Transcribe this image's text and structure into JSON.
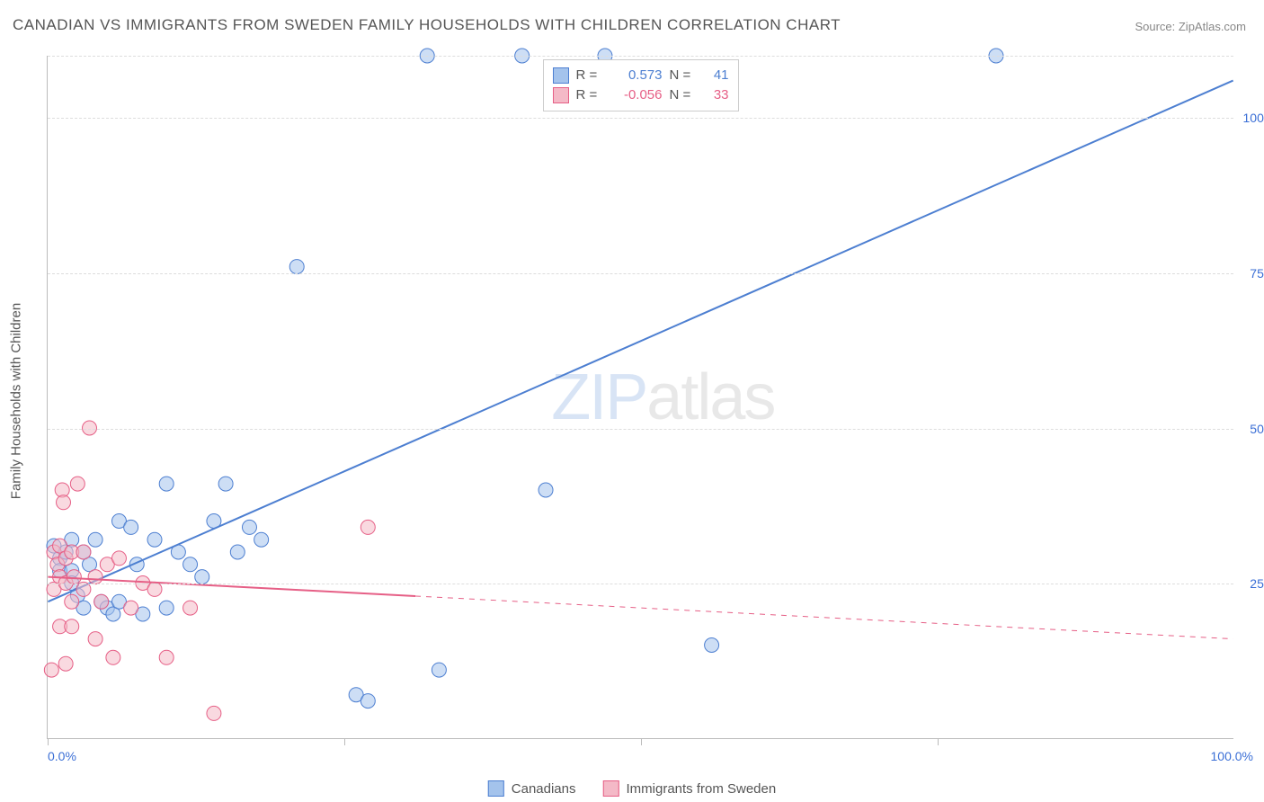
{
  "title": "CANADIAN VS IMMIGRANTS FROM SWEDEN FAMILY HOUSEHOLDS WITH CHILDREN CORRELATION CHART",
  "source_label": "Source: ",
  "source_site": "ZipAtlas.com",
  "ylabel": "Family Households with Children",
  "watermark_a": "ZIP",
  "watermark_b": "atlas",
  "chart": {
    "type": "scatter-correlation",
    "xlim": [
      0,
      100
    ],
    "ylim": [
      0,
      110
    ],
    "x_tick_positions": [
      0,
      25,
      50,
      75
    ],
    "y_grid": [
      25,
      50,
      75,
      100
    ],
    "y_grid_labels": [
      "25.0%",
      "50.0%",
      "75.0%",
      "100.0%"
    ],
    "x_left_label": "0.0%",
    "x_right_label": "100.0%",
    "background_color": "#ffffff",
    "grid_color": "#dddddd",
    "axis_color": "#bbbbbb",
    "label_color": "#3b6fd6",
    "marker_radius": 8,
    "marker_opacity": 0.55,
    "line_width": 2,
    "series": [
      {
        "name": "Canadians",
        "color_fill": "#a4c3ec",
        "color_stroke": "#4d7fd1",
        "r_value": "0.573",
        "n_value": "41",
        "points": [
          [
            0.5,
            31
          ],
          [
            1,
            29
          ],
          [
            1,
            27
          ],
          [
            1.5,
            30
          ],
          [
            2,
            32
          ],
          [
            2,
            27
          ],
          [
            2,
            25
          ],
          [
            2.5,
            23
          ],
          [
            3,
            30
          ],
          [
            3,
            21
          ],
          [
            3.5,
            28
          ],
          [
            4,
            32
          ],
          [
            4.5,
            22
          ],
          [
            5,
            21
          ],
          [
            5.5,
            20
          ],
          [
            6,
            35
          ],
          [
            6,
            22
          ],
          [
            7,
            34
          ],
          [
            7.5,
            28
          ],
          [
            8,
            20
          ],
          [
            9,
            32
          ],
          [
            10,
            21
          ],
          [
            10,
            41
          ],
          [
            11,
            30
          ],
          [
            12,
            28
          ],
          [
            13,
            26
          ],
          [
            14,
            35
          ],
          [
            15,
            41
          ],
          [
            16,
            30
          ],
          [
            17,
            34
          ],
          [
            18,
            32
          ],
          [
            21,
            76
          ],
          [
            26,
            7
          ],
          [
            27,
            6
          ],
          [
            32,
            110
          ],
          [
            33,
            11
          ],
          [
            40,
            110
          ],
          [
            42,
            40
          ],
          [
            47,
            110
          ],
          [
            56,
            15
          ],
          [
            80,
            110
          ]
        ],
        "trend": {
          "x1": 0,
          "y1": 22,
          "x2": 100,
          "y2": 106,
          "solid_to_x": 100,
          "extrapolate": false
        }
      },
      {
        "name": "Immigrants from Sweden",
        "color_fill": "#f4b9c7",
        "color_stroke": "#e65f86",
        "r_value": "-0.056",
        "n_value": "33",
        "points": [
          [
            0.3,
            11
          ],
          [
            0.5,
            24
          ],
          [
            0.5,
            30
          ],
          [
            0.8,
            28
          ],
          [
            1,
            18
          ],
          [
            1,
            26
          ],
          [
            1,
            31
          ],
          [
            1.2,
            40
          ],
          [
            1.3,
            38
          ],
          [
            1.5,
            12
          ],
          [
            1.5,
            25
          ],
          [
            1.5,
            29
          ],
          [
            2,
            30
          ],
          [
            2,
            22
          ],
          [
            2,
            18
          ],
          [
            2.2,
            26
          ],
          [
            2.5,
            41
          ],
          [
            3,
            30
          ],
          [
            3,
            24
          ],
          [
            3.5,
            50
          ],
          [
            4,
            26
          ],
          [
            4,
            16
          ],
          [
            4.5,
            22
          ],
          [
            5,
            28
          ],
          [
            5.5,
            13
          ],
          [
            6,
            29
          ],
          [
            7,
            21
          ],
          [
            8,
            25
          ],
          [
            9,
            24
          ],
          [
            10,
            13
          ],
          [
            12,
            21
          ],
          [
            14,
            4
          ],
          [
            27,
            34
          ]
        ],
        "trend": {
          "x1": 0,
          "y1": 26,
          "x2": 100,
          "y2": 16,
          "solid_to_x": 31,
          "extrapolate": true
        }
      }
    ]
  },
  "statbox": {
    "r_label": "R =",
    "n_label": "N ="
  },
  "legend": {
    "items": [
      {
        "label": "Canadians",
        "fill": "#a4c3ec",
        "stroke": "#4d7fd1"
      },
      {
        "label": "Immigrants from Sweden",
        "fill": "#f4b9c7",
        "stroke": "#e65f86"
      }
    ]
  }
}
